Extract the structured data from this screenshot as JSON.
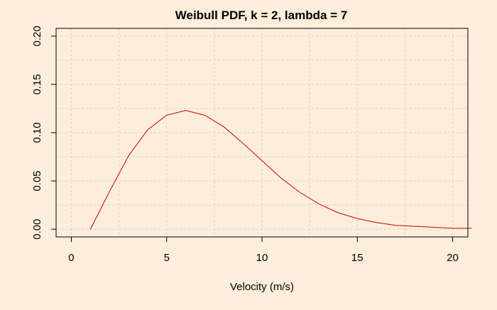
{
  "chart_data": {
    "type": "line",
    "title": "Weibull PDF, k = 2, lambda = 7",
    "xlabel": "Velocity (m/s)",
    "ylabel": "",
    "xlim": [
      -0.8,
      20.8
    ],
    "ylim": [
      -0.008,
      0.208
    ],
    "x_ticks": [
      0,
      5,
      10,
      15,
      20
    ],
    "y_ticks": [
      0.0,
      0.05,
      0.1,
      0.15,
      0.2
    ],
    "x_tick_labels": [
      "0",
      "5",
      "10",
      "15",
      "20"
    ],
    "y_tick_labels": [
      "0.00",
      "0.05",
      "0.10",
      "0.15",
      "0.20"
    ],
    "grid": true,
    "grid_x": [
      0,
      2.5,
      5,
      7.5,
      10,
      12.5,
      15,
      17.5,
      20
    ],
    "grid_y": [
      0.0,
      0.025,
      0.05,
      0.075,
      0.1,
      0.125,
      0.15,
      0.175,
      0.2
    ],
    "series": [
      {
        "x": [
          1,
          2,
          3,
          4,
          5,
          6,
          7,
          8,
          9,
          10,
          11,
          12,
          13,
          14,
          15,
          16,
          17,
          18,
          19,
          20,
          21
        ],
        "values": [
          0.0,
          0.039,
          0.076,
          0.103,
          0.118,
          0.123,
          0.118,
          0.106,
          0.089,
          0.071,
          0.053,
          0.038,
          0.026,
          0.017,
          0.011,
          0.007,
          0.004,
          0.003,
          0.002,
          0.001,
          0.001
        ],
        "color": "#CC0000"
      }
    ],
    "colors": {
      "background": "#FDEEDC",
      "grid": "#D3D3D3",
      "axis": "#000000",
      "line": "#CC0000"
    }
  }
}
